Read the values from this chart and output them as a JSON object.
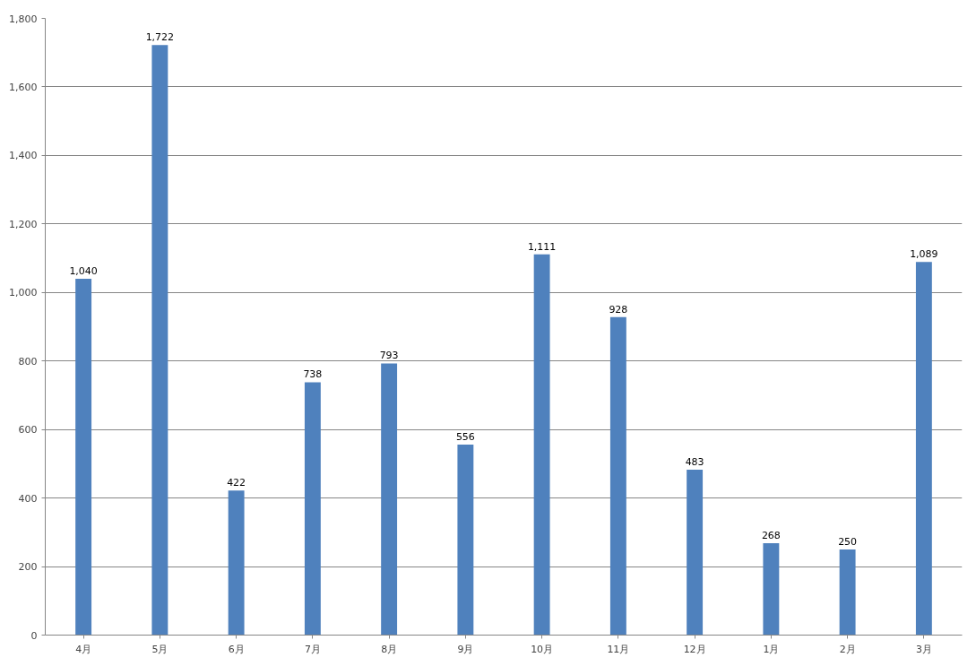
{
  "chart_data": {
    "type": "bar",
    "categories": [
      "4月",
      "5月",
      "6月",
      "7月",
      "8月",
      "9月",
      "10月",
      "11月",
      "12月",
      "1月",
      "2月",
      "3月"
    ],
    "values": [
      1040,
      1722,
      422,
      738,
      793,
      556,
      1111,
      928,
      483,
      268,
      250,
      1089
    ],
    "value_labels": [
      "1,040",
      "1,722",
      "422",
      "738",
      "793",
      "556",
      "1,111",
      "928",
      "483",
      "268",
      "250",
      "1,089"
    ],
    "color": "#4f81bd",
    "ylim": [
      0,
      1800
    ],
    "yticks": [
      0,
      200,
      400,
      600,
      800,
      {
        "value": 1000,
        "label": "1,000"
      },
      {
        "value": 1200,
        "label": "1,200"
      },
      {
        "value": 1400,
        "label": "1,400"
      },
      {
        "value": 1600,
        "label": "1,600"
      },
      {
        "value": 1800,
        "label": "1,800"
      }
    ],
    "grid": "y"
  }
}
